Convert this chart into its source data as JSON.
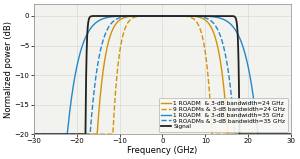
{
  "title": "",
  "xlabel": "Frequency (GHz)",
  "ylabel": "Normalized power (dB)",
  "xlim": [
    -30,
    30
  ],
  "ylim": [
    -20,
    2
  ],
  "xticks": [
    -30,
    -20,
    -10,
    0,
    10,
    20,
    30
  ],
  "yticks": [
    0,
    -5,
    -10,
    -15,
    -20
  ],
  "bg_color": "#ffffff",
  "ax_bg_color": "#f2f2ee",
  "series": [
    {
      "label": "1 ROADM  & 3-dB bandwidth=24 GHz",
      "color": "#d4920a",
      "linestyle": "-",
      "lw": 1.0,
      "bw": 24,
      "n": 1,
      "order": 4
    },
    {
      "label": "9 ROADMs & 3-dB bandwidth=24 GHz",
      "color": "#d4920a",
      "linestyle": "--",
      "lw": 1.0,
      "bw": 24,
      "n": 9,
      "order": 4
    },
    {
      "label": "1 ROADM  & 3-dB bandwidth=35 GHz",
      "color": "#2288cc",
      "linestyle": "-",
      "lw": 1.0,
      "bw": 35,
      "n": 1,
      "order": 4
    },
    {
      "label": "9 ROADMs & 3-dB bandwidth=35 GHz",
      "color": "#2288cc",
      "linestyle": "--",
      "lw": 1.0,
      "bw": 35,
      "n": 9,
      "order": 4
    }
  ],
  "signal_label": "Signal",
  "signal_color": "#222222",
  "signal_lw": 1.3,
  "signal_half_bw": 17.5,
  "legend_fontsize": 4.2,
  "tick_fontsize": 5.0,
  "label_fontsize": 6.0,
  "grid_color": "#cccccc"
}
